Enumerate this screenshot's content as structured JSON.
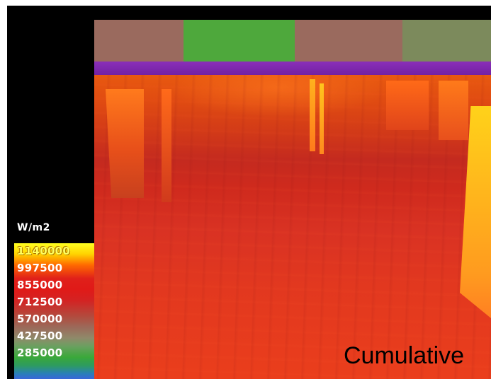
{
  "legend": {
    "unit": "W/m2",
    "labels": [
      "1140000",
      "997500",
      "855000",
      "712500",
      "570000",
      "427500",
      "285000"
    ]
  },
  "caption": "Cumulative",
  "colors": {
    "background": "#000000",
    "wall_segments": [
      "#9a6a5e",
      "#4ea83c",
      "#9a6a5e",
      "#7c8a5c"
    ],
    "band": "#7a28ad",
    "floor_hot": "#e0321e",
    "legend_top": "#ffff20",
    "legend_bottom": "#3a66d8"
  }
}
